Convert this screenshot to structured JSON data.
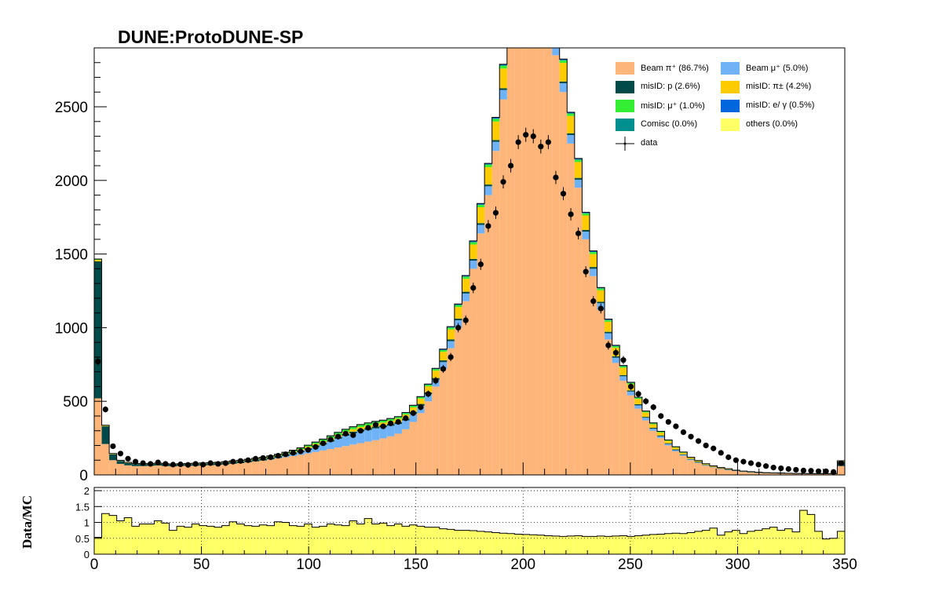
{
  "title": "DUNE:ProtoDUNE-SP",
  "ratio_ylabel": "Data/MC",
  "legend": [
    {
      "label": "Beam  π⁺ (86.7%)",
      "color": "#fdb57a"
    },
    {
      "label": "Beam  μ⁺ (5.0%)",
      "color": "#6fb3f6"
    },
    {
      "label": "misID: p (2.6%)",
      "color": "#004a4a"
    },
    {
      "label": "misID:  π± (4.2%)",
      "color": "#fccb00"
    },
    {
      "label": "misID:  μ⁺ (1.0%)",
      "color": "#33ee33"
    },
    {
      "label": "misID: e/ γ (0.5%)",
      "color": "#0066dd"
    },
    {
      "label": "Comisc (0.0%)",
      "color": "#008f8f"
    },
    {
      "label": "others (0.0%)",
      "color": "#ffff66"
    },
    {
      "label": "data",
      "color": "#000000"
    }
  ],
  "chart_data": [
    {
      "type": "area",
      "subtype": "stacked-histogram-with-data-points",
      "title": "DUNE:ProtoDUNE-SP",
      "xlim": [
        0,
        350
      ],
      "ylim": [
        0,
        2900
      ],
      "bin_width": 3.5,
      "xticks": [
        0,
        50,
        100,
        150,
        200,
        250,
        300,
        350
      ],
      "yticks": [
        0,
        500,
        1000,
        1500,
        2000,
        2500
      ],
      "bin_centers": [
        1.75,
        5.25,
        8.75,
        12.25,
        15.75,
        19.25,
        22.75,
        26.25,
        29.75,
        33.25,
        36.75,
        40.25,
        43.75,
        47.25,
        50.75,
        54.25,
        57.75,
        61.25,
        64.75,
        68.25,
        71.75,
        75.25,
        78.75,
        82.25,
        85.75,
        89.25,
        92.75,
        96.25,
        99.75,
        103.25,
        106.75,
        110.25,
        113.75,
        117.25,
        120.75,
        124.25,
        127.75,
        131.25,
        134.75,
        138.25,
        141.75,
        145.25,
        148.75,
        152.25,
        155.75,
        159.25,
        162.75,
        166.25,
        169.75,
        173.25,
        176.75,
        180.25,
        183.75,
        187.25,
        190.75,
        194.25,
        197.75,
        201.25,
        204.75,
        208.25,
        211.75,
        215.25,
        218.75,
        222.25,
        225.75,
        229.25,
        232.75,
        236.25,
        239.75,
        243.25,
        246.75,
        250.25,
        253.75,
        257.25,
        260.75,
        264.25,
        267.75,
        271.25,
        274.75,
        278.25,
        281.75,
        285.25,
        288.75,
        292.25,
        295.75,
        299.25,
        302.75,
        306.25,
        309.75,
        313.25,
        316.75,
        320.25,
        323.75,
        327.25,
        330.75,
        334.25,
        337.75,
        341.25,
        344.75,
        348.25
      ],
      "series": [
        {
          "name": "Beam  π⁺ (86.7%)",
          "color": "#fdb57a",
          "values": [
            520,
            210,
            100,
            75,
            65,
            60,
            60,
            62,
            64,
            60,
            58,
            60,
            62,
            62,
            64,
            66,
            68,
            72,
            76,
            80,
            86,
            92,
            98,
            104,
            112,
            120,
            128,
            136,
            146,
            156,
            166,
            176,
            186,
            196,
            206,
            216,
            226,
            236,
            248,
            262,
            280,
            310,
            360,
            420,
            500,
            600,
            720,
            860,
            1000,
            1180,
            1400,
            1640,
            1900,
            2200,
            2550,
            2900,
            3000,
            3050,
            3050,
            3000,
            2950,
            2850,
            2600,
            2250,
            1950,
            1600,
            1350,
            1120,
            920,
            760,
            640,
            540,
            450,
            370,
            300,
            250,
            200,
            160,
            130,
            100,
            80,
            62,
            50,
            40,
            32,
            26,
            20,
            16,
            13,
            11,
            10,
            9,
            8,
            7,
            7,
            6,
            6,
            6,
            6,
            60
          ]
        },
        {
          "name": "Beam  μ⁺ (5.0%)",
          "color": "#6fb3f6",
          "values": [
            0,
            0,
            0,
            0,
            0,
            0,
            0,
            0,
            0,
            0,
            0,
            0,
            0,
            0,
            0,
            0,
            0,
            0,
            0,
            0,
            0,
            0,
            0,
            2,
            4,
            8,
            12,
            18,
            24,
            32,
            40,
            50,
            60,
            70,
            76,
            80,
            80,
            80,
            76,
            72,
            66,
            60,
            55,
            50,
            48,
            46,
            46,
            48,
            50,
            52,
            55,
            58,
            60,
            62,
            64,
            66,
            66,
            66,
            66,
            66,
            64,
            62,
            60,
            58,
            55,
            52,
            50,
            46,
            42,
            36,
            30,
            26,
            22,
            18,
            14,
            12,
            10,
            8,
            6,
            5,
            4,
            3,
            2,
            2,
            2,
            1,
            1,
            1,
            1,
            0,
            0,
            0,
            0,
            0,
            0,
            0,
            0,
            0,
            0,
            0
          ]
        },
        {
          "name": "misID: p (2.6%)",
          "color": "#004a4a",
          "values": [
            930,
            120,
            40,
            20,
            16,
            14,
            12,
            12,
            12,
            12,
            12,
            12,
            12,
            12,
            12,
            12,
            12,
            12,
            12,
            12,
            12,
            12,
            12,
            12,
            12,
            12,
            12,
            12,
            12,
            12,
            12,
            12,
            12,
            12,
            12,
            12,
            12,
            12,
            12,
            12,
            12,
            12,
            12,
            12,
            12,
            12,
            12,
            12,
            12,
            12,
            12,
            12,
            12,
            12,
            12,
            12,
            12,
            12,
            12,
            12,
            12,
            12,
            12,
            12,
            12,
            12,
            12,
            10,
            10,
            10,
            8,
            8,
            8,
            6,
            6,
            6,
            5,
            5,
            4,
            4,
            4,
            3,
            3,
            3,
            3,
            2,
            2,
            2,
            2,
            2,
            2,
            2,
            2,
            2,
            2,
            2,
            2,
            2,
            2,
            30
          ]
        },
        {
          "name": "misID:  π± (4.2%)",
          "color": "#fccb00",
          "values": [
            10,
            4,
            3,
            2,
            2,
            2,
            2,
            2,
            2,
            2,
            2,
            2,
            2,
            3,
            3,
            3,
            3,
            3,
            4,
            4,
            4,
            5,
            5,
            6,
            6,
            7,
            8,
            9,
            10,
            11,
            12,
            13,
            14,
            15,
            16,
            17,
            18,
            19,
            20,
            22,
            24,
            28,
            32,
            36,
            42,
            50,
            58,
            68,
            78,
            88,
            98,
            108,
            118,
            126,
            134,
            140,
            144,
            146,
            146,
            144,
            140,
            134,
            126,
            118,
            108,
            98,
            88,
            78,
            68,
            58,
            50,
            42,
            36,
            30,
            24,
            20,
            16,
            13,
            10,
            8,
            6,
            5,
            4,
            3,
            3,
            2,
            2,
            2,
            1,
            1,
            1,
            1,
            1,
            1,
            1,
            1,
            1,
            1,
            1,
            5
          ]
        },
        {
          "name": "misID:  μ⁺ (1.0%)",
          "color": "#33ee33",
          "values": [
            4,
            2,
            1,
            1,
            1,
            1,
            1,
            1,
            1,
            1,
            1,
            1,
            1,
            1,
            1,
            1,
            2,
            2,
            2,
            2,
            3,
            3,
            3,
            4,
            4,
            5,
            6,
            7,
            8,
            9,
            10,
            12,
            14,
            14,
            14,
            14,
            14,
            14,
            13,
            12,
            11,
            10,
            10,
            10,
            10,
            11,
            12,
            13,
            14,
            15,
            16,
            17,
            18,
            19,
            20,
            20,
            20,
            20,
            20,
            20,
            20,
            19,
            18,
            17,
            16,
            15,
            14,
            13,
            12,
            11,
            10,
            9,
            8,
            7,
            6,
            5,
            4,
            3,
            3,
            2,
            2,
            2,
            1,
            1,
            1,
            1,
            1,
            1,
            1,
            1,
            1,
            1,
            0,
            0,
            0,
            0,
            0,
            0,
            0,
            1
          ]
        },
        {
          "name": "misID: e/ γ (0.5%)",
          "color": "#0066dd",
          "values": [
            2,
            1,
            1,
            1,
            1,
            1,
            1,
            1,
            1,
            1,
            1,
            1,
            1,
            1,
            1,
            1,
            1,
            1,
            1,
            1,
            1,
            1,
            1,
            1,
            2,
            2,
            2,
            2,
            2,
            3,
            3,
            3,
            3,
            3,
            3,
            3,
            3,
            3,
            3,
            3,
            3,
            4,
            4,
            4,
            5,
            5,
            6,
            6,
            7,
            7,
            8,
            8,
            8,
            9,
            9,
            9,
            9,
            9,
            9,
            9,
            9,
            9,
            8,
            8,
            8,
            7,
            7,
            6,
            6,
            5,
            5,
            4,
            4,
            3,
            3,
            3,
            2,
            2,
            2,
            1,
            1,
            1,
            1,
            1,
            1,
            0,
            0,
            0,
            0,
            0,
            0,
            0,
            0,
            0,
            0,
            0,
            0,
            0,
            0,
            0
          ]
        }
      ],
      "data_points": [
        770,
        445,
        195,
        145,
        110,
        90,
        80,
        75,
        85,
        75,
        70,
        72,
        68,
        75,
        70,
        80,
        75,
        80,
        90,
        95,
        100,
        110,
        115,
        120,
        130,
        140,
        150,
        160,
        170,
        190,
        215,
        240,
        260,
        280,
        270,
        300,
        320,
        340,
        330,
        350,
        360,
        385,
        420,
        460,
        550,
        640,
        720,
        800,
        1000,
        1050,
        1270,
        1430,
        1690,
        1780,
        1990,
        2100,
        2260,
        2310,
        2300,
        2230,
        2260,
        2020,
        1910,
        1770,
        1640,
        1380,
        1180,
        1130,
        880,
        830,
        780,
        600,
        550,
        500,
        460,
        400,
        360,
        330,
        290,
        260,
        230,
        200,
        180,
        150,
        120,
        100,
        90,
        80,
        70,
        60,
        50,
        45,
        40,
        35,
        30,
        28,
        25,
        25,
        20,
        80
      ],
      "data_label": "data"
    },
    {
      "type": "area",
      "subtype": "ratio-histogram",
      "ylabel": "Data/MC",
      "xlim": [
        0,
        350
      ],
      "ylim": [
        0,
        2.1
      ],
      "xticks": [
        0,
        50,
        100,
        150,
        200,
        250,
        300,
        350
      ],
      "yticks": [
        0,
        0.5,
        1,
        1.5,
        2
      ],
      "ytick_labels": [
        "0",
        "0.5",
        "1",
        "1.5",
        "2"
      ],
      "grid": true,
      "color": "#ffff66",
      "values": [
        0.53,
        1.28,
        1.22,
        1.05,
        1.15,
        0.88,
        0.95,
        0.95,
        1.05,
        0.98,
        0.75,
        0.88,
        0.85,
        0.95,
        0.9,
        0.88,
        0.85,
        0.9,
        1.02,
        0.95,
        0.9,
        0.88,
        0.92,
        0.9,
        1.02,
        1.0,
        0.9,
        0.88,
        0.95,
        0.85,
        0.88,
        0.95,
        0.92,
        0.9,
        1.05,
        0.95,
        1.12,
        0.95,
        0.98,
        0.9,
        0.95,
        0.88,
        0.92,
        0.88,
        0.85,
        0.85,
        0.8,
        0.78,
        0.75,
        0.75,
        0.74,
        0.72,
        0.7,
        0.68,
        0.66,
        0.65,
        0.63,
        0.62,
        0.61,
        0.6,
        0.58,
        0.57,
        0.56,
        0.57,
        0.58,
        0.56,
        0.56,
        0.57,
        0.56,
        0.57,
        0.58,
        0.56,
        0.58,
        0.6,
        0.62,
        0.63,
        0.65,
        0.66,
        0.65,
        0.68,
        0.72,
        0.75,
        0.82,
        0.6,
        0.7,
        0.75,
        0.65,
        0.72,
        0.75,
        0.8,
        0.85,
        0.75,
        0.8,
        0.7,
        1.38,
        1.25,
        0.72,
        0.48,
        0.5,
        0.72
      ]
    }
  ]
}
